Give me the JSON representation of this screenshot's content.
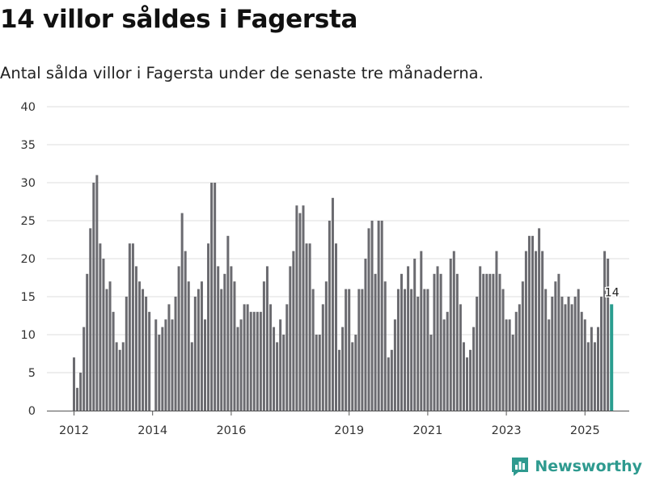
{
  "title": "14 villor såldes i Fagersta",
  "subtitle": "Antal sålda villor i Fagersta under de senaste tre månaderna.",
  "brand": {
    "name": "Newsworthy",
    "icon": "newsworthy-logo-icon",
    "color": "#2e9a8f"
  },
  "colors": {
    "bar": "#6b6b70",
    "highlight": "#2a9d8f",
    "grid": "#dddddd",
    "axis": "#555555"
  },
  "chart_data": {
    "type": "bar",
    "title": "14 villor såldes i Fagersta",
    "xlabel": "",
    "ylabel": "",
    "ylim": [
      0,
      40
    ],
    "yticks": [
      0,
      5,
      10,
      15,
      20,
      25,
      30,
      35,
      40
    ],
    "xticks": [
      {
        "label": "2012",
        "year": 2012
      },
      {
        "label": "2014",
        "year": 2014
      },
      {
        "label": "2016",
        "year": 2016
      },
      {
        "label": "2019",
        "year": 2019
      },
      {
        "label": "2021",
        "year": 2021
      },
      {
        "label": "2023",
        "year": 2023
      },
      {
        "label": "2025",
        "year": 2025
      }
    ],
    "start": "2012-01",
    "unit": "month",
    "values": [
      7,
      3,
      5,
      11,
      18,
      24,
      30,
      31,
      22,
      20,
      16,
      17,
      13,
      9,
      8,
      9,
      15,
      22,
      22,
      19,
      17,
      16,
      15,
      13,
      null,
      12,
      10,
      11,
      12,
      14,
      12,
      15,
      19,
      26,
      21,
      17,
      9,
      15,
      16,
      17,
      12,
      22,
      30,
      30,
      19,
      16,
      18,
      23,
      19,
      17,
      11,
      12,
      14,
      14,
      13,
      13,
      13,
      13,
      17,
      19,
      14,
      11,
      9,
      12,
      10,
      14,
      19,
      21,
      27,
      26,
      27,
      22,
      22,
      16,
      10,
      10,
      14,
      17,
      25,
      28,
      22,
      8,
      11,
      16,
      16,
      9,
      10,
      16,
      16,
      20,
      24,
      25,
      18,
      25,
      25,
      17,
      7,
      8,
      12,
      16,
      18,
      16,
      19,
      16,
      20,
      15,
      21,
      16,
      16,
      10,
      18,
      19,
      18,
      12,
      13,
      20,
      21,
      18,
      14,
      9,
      7,
      8,
      11,
      15,
      19,
      18,
      18,
      18,
      18,
      21,
      18,
      16,
      12,
      12,
      10,
      13,
      14,
      17,
      21,
      23,
      23,
      21,
      24,
      21,
      16,
      12,
      15,
      17,
      18,
      15,
      14,
      15,
      14,
      15,
      16,
      13,
      12,
      9,
      11,
      9,
      11,
      15,
      21,
      20,
      14
    ],
    "highlight_index": 164,
    "highlight_label": "14"
  }
}
